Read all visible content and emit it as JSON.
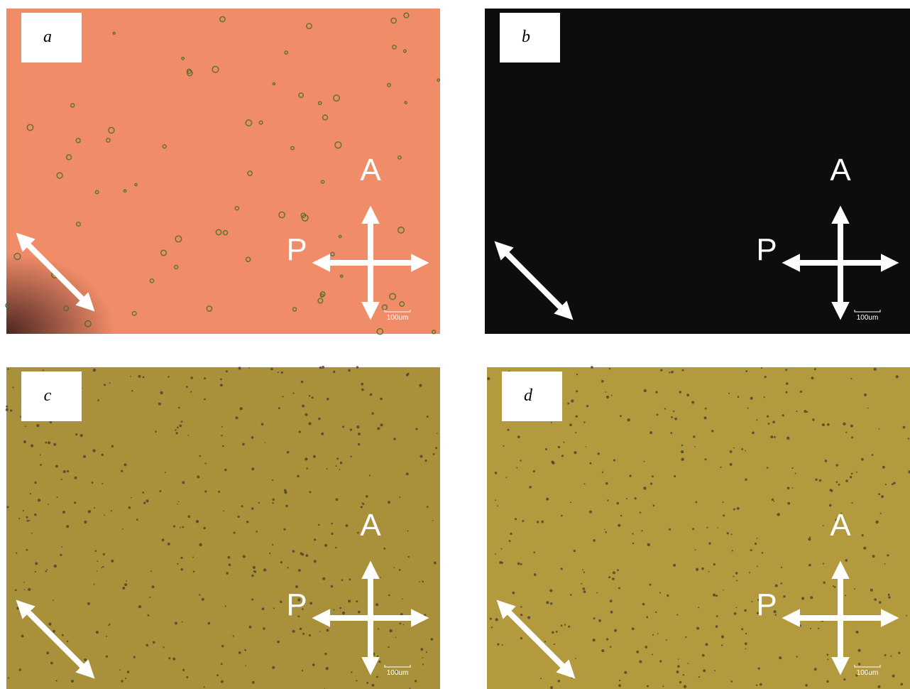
{
  "panels": [
    {
      "label": "a",
      "analyzer": "A",
      "polarizer": "P",
      "scale_bar": "100um"
    },
    {
      "label": "b",
      "analyzer": "A",
      "polarizer": "P",
      "scale_bar": "100um"
    },
    {
      "label": "c",
      "analyzer": "A",
      "polarizer": "P",
      "scale_bar": "100um"
    },
    {
      "label": "d",
      "analyzer": "A",
      "polarizer": "P",
      "scale_bar": "100um"
    }
  ]
}
